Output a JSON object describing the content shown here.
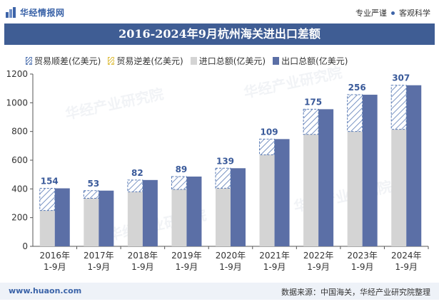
{
  "header": {
    "logo_text": "华经情报网",
    "tagline_left": "专业严谨",
    "tagline_right": "客观科学"
  },
  "title": "2016-2024年9月杭州海关进出口差额",
  "legend": [
    {
      "label": "贸易顺差(亿美元)",
      "swatch": "hatch-blue"
    },
    {
      "label": "贸易逆差(亿美元)",
      "swatch": "hatch-yellow"
    },
    {
      "label": "进口总额(亿美元)",
      "swatch": "grey"
    },
    {
      "label": "出口总额(亿美元)",
      "swatch": "blue"
    }
  ],
  "watermarks": [
    "华经产业研究院",
    "www.huaon.com"
  ],
  "footer": {
    "website": "www.huaon.com",
    "source": "数据来源：中国海关，华经产业研究院整理"
  },
  "chart_data": {
    "type": "bar",
    "title": "2016-2024年9月杭州海关进出口差额",
    "categories": [
      [
        "2016年",
        "1-9月"
      ],
      [
        "2017年",
        "1-9月"
      ],
      [
        "2018年",
        "1-9月"
      ],
      [
        "2019年",
        "1-9月"
      ],
      [
        "2020年",
        "1-9月"
      ],
      [
        "2021年",
        "1-9月"
      ],
      [
        "2022年",
        "1-9月"
      ],
      [
        "2023年",
        "1-9月"
      ],
      [
        "2024年",
        "1-9月"
      ]
    ],
    "series": [
      {
        "name": "进口总额(亿美元)",
        "values": [
          250,
          335,
          380,
          397,
          405,
          638,
          780,
          800,
          815
        ],
        "color": "#d4d4d4"
      },
      {
        "name": "出口总额(亿美元)",
        "values": [
          404,
          388,
          462,
          486,
          544,
          747,
          955,
          1056,
          1122
        ],
        "color": "#5b6fa6"
      },
      {
        "name": "贸易顺差(亿美元)",
        "values": [
          154,
          53,
          82,
          89,
          139,
          109,
          175,
          256,
          307
        ],
        "color": "#5a7bb5"
      }
    ],
    "ylim": [
      0,
      1200
    ],
    "yticks": [
      0,
      200,
      400,
      600,
      800,
      1000,
      1200
    ],
    "grid": false,
    "legend_position": "top"
  }
}
